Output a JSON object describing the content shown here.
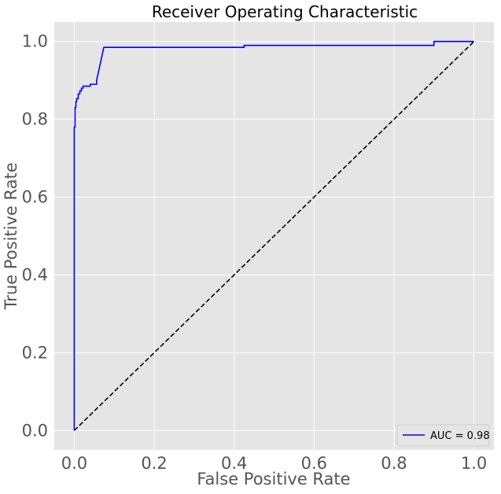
{
  "chart_data": {
    "type": "line",
    "title": "Receiver Operating Characteristic",
    "xlabel": "False Positive Rate",
    "ylabel": "True Positive Rate",
    "xlim": [
      -0.05,
      1.05
    ],
    "ylim": [
      -0.05,
      1.05
    ],
    "xticks": [
      "0.0",
      "0.2",
      "0.4",
      "0.6",
      "0.8",
      "1.0"
    ],
    "yticks": [
      "0.0",
      "0.2",
      "0.4",
      "0.6",
      "0.8",
      "1.0"
    ],
    "grid": true,
    "background_color": "#e5e5e5",
    "legend": {
      "placement": "lower-right"
    },
    "series": [
      {
        "name": "AUC = 0.98",
        "color": "#0000ff",
        "style": "solid",
        "x": [
          0.0,
          0.0,
          0.002,
          0.002,
          0.004,
          0.004,
          0.006,
          0.006,
          0.01,
          0.01,
          0.014,
          0.014,
          0.018,
          0.018,
          0.022,
          0.022,
          0.04,
          0.04,
          0.056,
          0.056,
          0.074,
          0.425,
          0.425,
          0.9,
          0.9,
          1.0
        ],
        "y": [
          0.0,
          0.78,
          0.78,
          0.83,
          0.83,
          0.845,
          0.845,
          0.853,
          0.853,
          0.865,
          0.865,
          0.873,
          0.873,
          0.88,
          0.88,
          0.885,
          0.885,
          0.89,
          0.89,
          0.9,
          0.985,
          0.985,
          0.99,
          0.99,
          1.0,
          1.0
        ]
      },
      {
        "name": "",
        "color": "#000000",
        "style": "dashed",
        "x": [
          0.0,
          1.0
        ],
        "y": [
          0.0,
          1.0
        ]
      }
    ]
  }
}
